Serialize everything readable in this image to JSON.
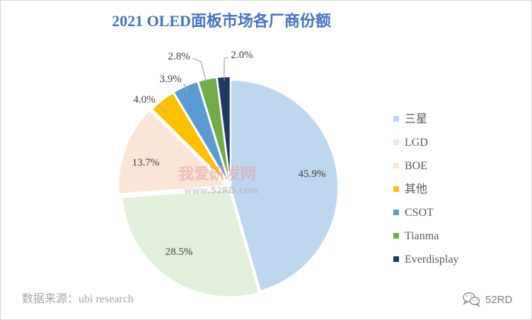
{
  "chart_data": {
    "type": "pie",
    "title": "2021 OLED面板市场各厂商份额",
    "categories": [
      "三星",
      "LGD",
      "BOE",
      "其他",
      "CSOT",
      "Tianma",
      "Everdisplay"
    ],
    "values": [
      45.9,
      28.5,
      13.7,
      4.0,
      3.9,
      2.8,
      2.0
    ],
    "data_labels": [
      "45.9%",
      "28.5%",
      "13.7%",
      "4.0%",
      "3.9%",
      "2.8%",
      "2.0%"
    ],
    "colors": [
      "#BDD7EE",
      "#E2EFDA",
      "#FBE5D6",
      "#FFC000",
      "#5B9BD5",
      "#70AD47",
      "#1F3864"
    ],
    "legend": "right"
  },
  "watermark": {
    "text": "我爱研发网",
    "url": "www.52RD.com"
  },
  "footer": {
    "source": "数据来源：ubi research",
    "brand": "52RD",
    "brand_icon": "wechat-icon"
  },
  "theme": {
    "title_color": "#4472C4",
    "leader_color": "#A6A6A6",
    "watermark_color": "#E8A0A0"
  }
}
